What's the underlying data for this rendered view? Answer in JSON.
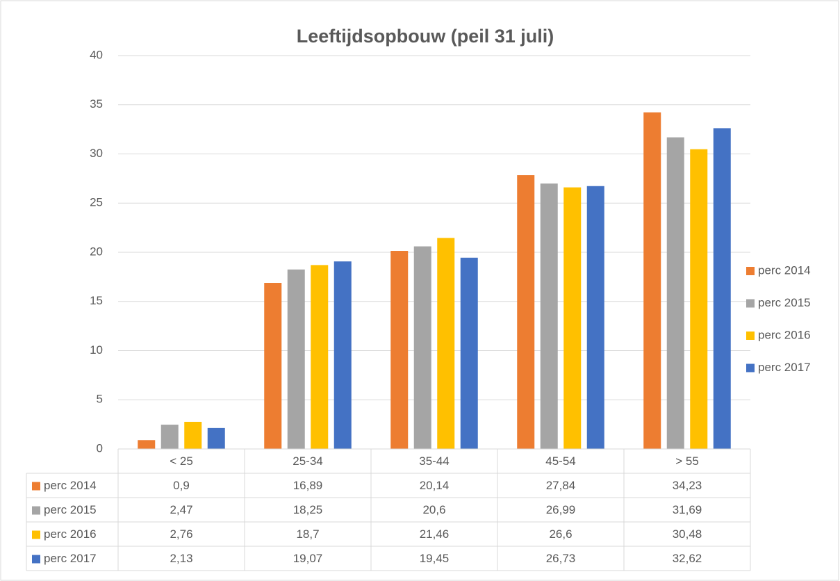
{
  "chart_data": {
    "type": "bar",
    "title": "Leeftijdsopbouw (peil 31 juli)",
    "categories": [
      "< 25",
      "25-34",
      "35-44",
      "45-54",
      "> 55"
    ],
    "series": [
      {
        "name": "perc 2014",
        "color": "#ed7d31",
        "values": [
          0.9,
          16.89,
          20.14,
          27.84,
          34.23
        ],
        "value_labels": [
          "0,9",
          "16,89",
          "20,14",
          "27,84",
          "34,23"
        ]
      },
      {
        "name": "perc 2015",
        "color": "#a5a5a5",
        "values": [
          2.47,
          18.25,
          20.6,
          26.99,
          31.69
        ],
        "value_labels": [
          "2,47",
          "18,25",
          "20,6",
          "26,99",
          "31,69"
        ]
      },
      {
        "name": "perc 2016",
        "color": "#ffc000",
        "values": [
          2.76,
          18.7,
          21.46,
          26.6,
          30.48
        ],
        "value_labels": [
          "2,76",
          "18,7",
          "21,46",
          "26,6",
          "30,48"
        ]
      },
      {
        "name": "perc 2017",
        "color": "#4472c4",
        "values": [
          2.13,
          19.07,
          19.45,
          26.73,
          32.62
        ],
        "value_labels": [
          "2,13",
          "19,07",
          "19,45",
          "26,73",
          "32,62"
        ]
      }
    ],
    "ylim": [
      0,
      40
    ],
    "yticks": [
      0,
      5,
      10,
      15,
      20,
      25,
      30,
      35,
      40
    ],
    "grid": true,
    "legend": "right",
    "data_table": true
  }
}
